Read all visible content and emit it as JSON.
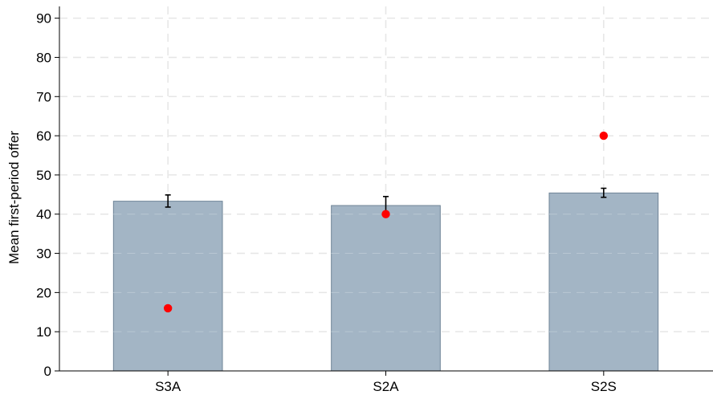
{
  "chart_data": {
    "type": "bar",
    "title": "",
    "xlabel": "",
    "ylabel": "Mean first-period offer",
    "categories": [
      "S3A",
      "S2A",
      "S2S"
    ],
    "values": [
      43.3,
      42.2,
      45.4
    ],
    "error_bars": [
      {
        "low": 41.8,
        "high": 44.9
      },
      {
        "low": 40.0,
        "high": 44.5
      },
      {
        "low": 44.3,
        "high": 46.6
      }
    ],
    "markers": [
      16,
      40,
      60
    ],
    "ylim": [
      0,
      93
    ],
    "yticks": [
      "0",
      "10",
      "20",
      "30",
      "40",
      "50",
      "60",
      "70",
      "80",
      "90"
    ],
    "grid": true,
    "colors": {
      "bar_fill": "#a3b5c5",
      "bar_stroke": "#6f8597",
      "marker": "#ff0000",
      "grid": "#e6e6e6",
      "errorbar": "#000000"
    }
  }
}
